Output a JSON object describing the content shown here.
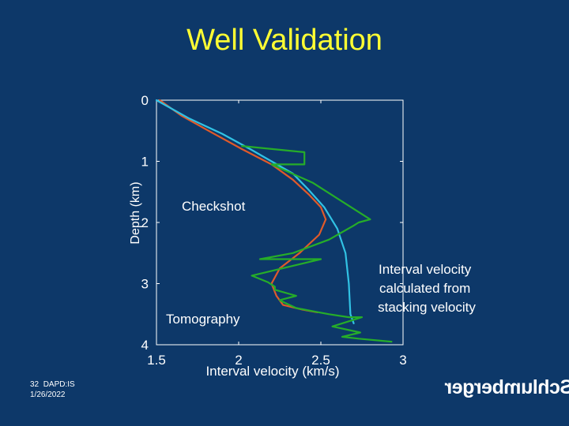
{
  "slide": {
    "title": "Well Validation",
    "slide_number": "32",
    "org_code": "DAPD:IS",
    "date": "1/26/2022",
    "logo_text": "Schlumberger"
  },
  "colors": {
    "background": "#0d3869",
    "title": "#ffff33",
    "axis": "#ffffff",
    "checkshot": "#31c2e4",
    "tomography": "#e05a2a",
    "interval_velocity": "#26ad29"
  },
  "chart_data": {
    "type": "line",
    "title": "",
    "xlabel": "Interval velocity (km/s)",
    "ylabel": "Depth (km)",
    "xlim": [
      1.5,
      3
    ],
    "ylim": [
      4,
      0
    ],
    "y_inverted": true,
    "x_ticks": [
      "1.5",
      "2",
      "2.5",
      "3"
    ],
    "y_ticks": [
      "0",
      "1",
      "2",
      "3",
      "4"
    ],
    "grid": false,
    "annotations": [
      {
        "text": "Checkshot",
        "series": "Checkshot"
      },
      {
        "text": "Tomography",
        "series": "Tomography"
      },
      {
        "text": "Interval velocity calculated from stacking velocity",
        "lines": [
          "Interval velocity",
          "calculated from",
          "stacking velocity"
        ],
        "series": "Interval velocity calculated from stacking velocity"
      }
    ],
    "series": [
      {
        "name": "Tomography",
        "points": [
          [
            1.52,
            0.0
          ],
          [
            1.65,
            0.25
          ],
          [
            1.85,
            0.55
          ],
          [
            2.02,
            0.8
          ],
          [
            2.2,
            1.05
          ],
          [
            2.33,
            1.3
          ],
          [
            2.43,
            1.55
          ],
          [
            2.5,
            1.75
          ],
          [
            2.53,
            1.95
          ],
          [
            2.49,
            2.2
          ],
          [
            2.37,
            2.5
          ],
          [
            2.25,
            2.75
          ],
          [
            2.2,
            3.0
          ],
          [
            2.23,
            3.2
          ],
          [
            2.27,
            3.35
          ],
          [
            2.38,
            3.42
          ],
          [
            2.48,
            3.47
          ]
        ]
      },
      {
        "name": "Checkshot",
        "points": [
          [
            1.5,
            0.0
          ],
          [
            1.7,
            0.3
          ],
          [
            1.9,
            0.55
          ],
          [
            2.07,
            0.8
          ],
          [
            2.2,
            1.0
          ],
          [
            2.33,
            1.2
          ],
          [
            2.42,
            1.45
          ],
          [
            2.52,
            1.75
          ],
          [
            2.6,
            2.1
          ],
          [
            2.65,
            2.5
          ],
          [
            2.67,
            3.0
          ],
          [
            2.68,
            3.5
          ],
          [
            2.7,
            3.65
          ]
        ]
      },
      {
        "name": "Interval velocity calculated from stacking velocity",
        "points": [
          [
            2.02,
            0.75
          ],
          [
            2.4,
            0.85
          ],
          [
            2.4,
            1.05
          ],
          [
            2.2,
            1.05
          ],
          [
            2.45,
            1.35
          ],
          [
            2.8,
            1.95
          ],
          [
            2.73,
            2.0
          ],
          [
            2.7,
            2.05
          ],
          [
            2.55,
            2.28
          ],
          [
            2.33,
            2.5
          ],
          [
            2.13,
            2.6
          ],
          [
            2.5,
            2.6
          ],
          [
            2.08,
            2.87
          ],
          [
            2.18,
            2.98
          ],
          [
            2.22,
            3.05
          ],
          [
            2.22,
            3.1
          ],
          [
            2.35,
            3.2
          ],
          [
            2.25,
            3.27
          ],
          [
            2.27,
            3.3
          ],
          [
            2.35,
            3.4
          ],
          [
            2.45,
            3.45
          ],
          [
            2.55,
            3.5
          ],
          [
            2.67,
            3.55
          ],
          [
            2.75,
            3.55
          ],
          [
            2.57,
            3.7
          ],
          [
            2.74,
            3.8
          ],
          [
            2.63,
            3.87
          ],
          [
            2.73,
            3.9
          ],
          [
            2.93,
            3.95
          ]
        ]
      }
    ]
  }
}
